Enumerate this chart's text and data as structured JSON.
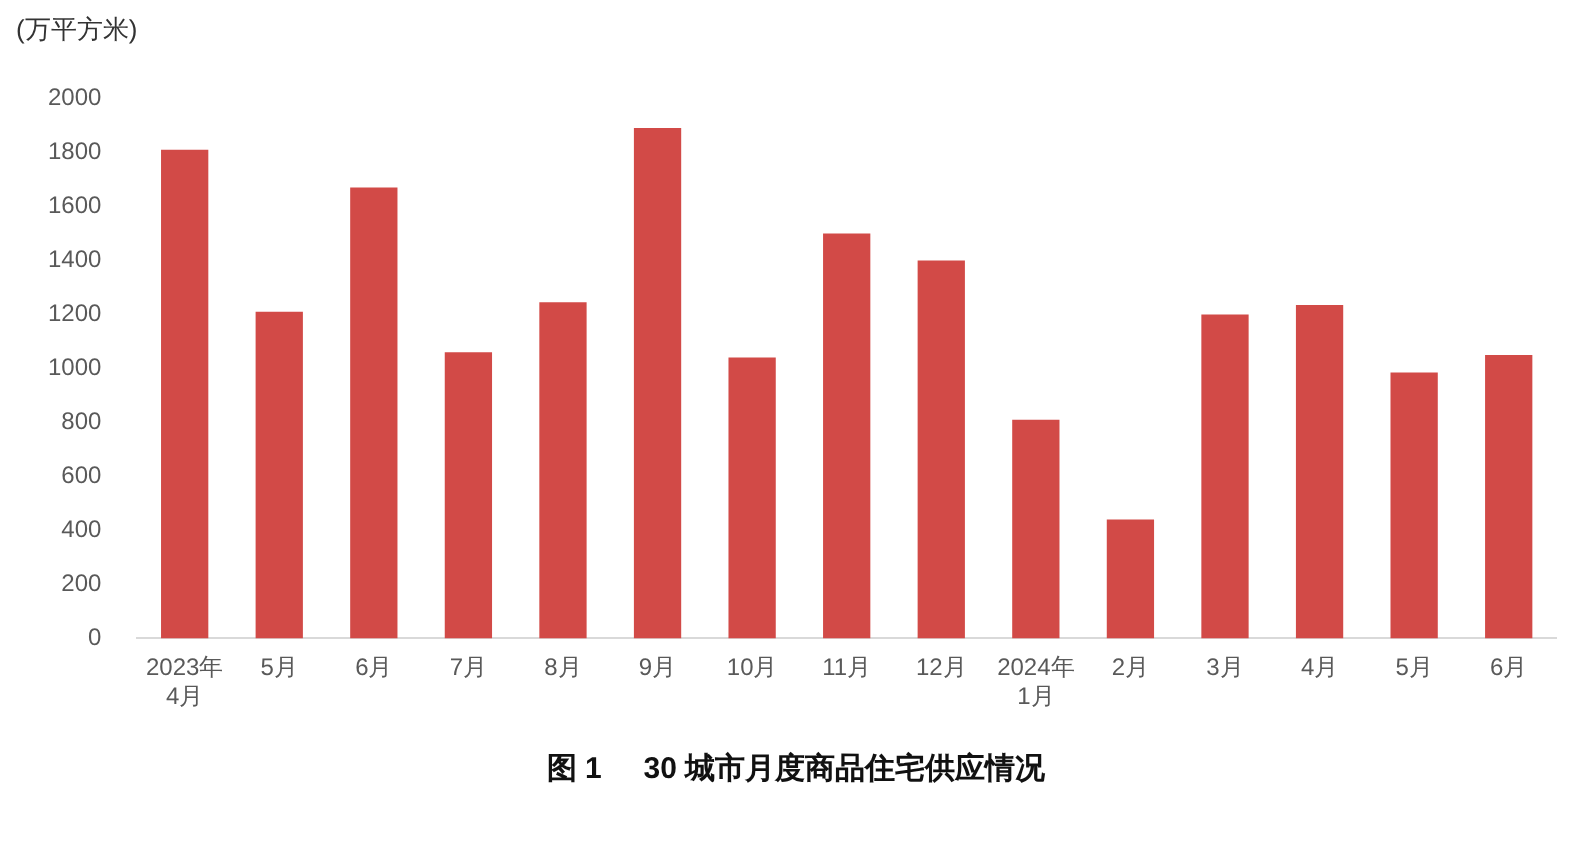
{
  "chart_data": {
    "type": "bar",
    "title": "图 1     30 城市月度商品住宅供应情况",
    "ylabel": "(万平方米)",
    "categories": [
      "2023年\n4月",
      "5月",
      "6月",
      "7月",
      "8月",
      "9月",
      "10月",
      "11月",
      "12月",
      "2024年\n1月",
      "2月",
      "3月",
      "4月",
      "5月",
      "6月"
    ],
    "values": [
      1810,
      1210,
      1670,
      1060,
      1245,
      1890,
      1040,
      1500,
      1400,
      810,
      440,
      1200,
      1235,
      985,
      1050
    ],
    "color": "#d24a47",
    "ylim": [
      0,
      2000
    ],
    "yticks": [
      0,
      200,
      400,
      600,
      800,
      1000,
      1200,
      1400,
      1600,
      1800,
      2000
    ],
    "grid": false,
    "legend": false
  }
}
